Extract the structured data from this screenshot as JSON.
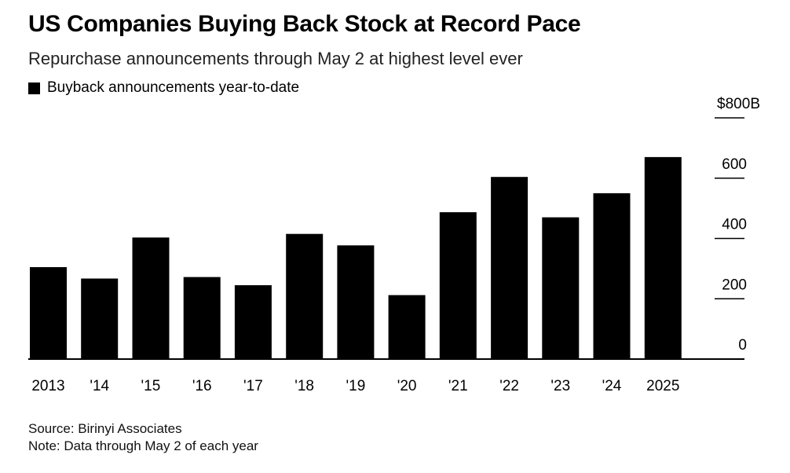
{
  "header": {
    "title": "US Companies Buying Back Stock at Record Pace",
    "subtitle": "Repurchase announcements through May 2 at highest level ever"
  },
  "footer": {
    "source": "Source: Birinyi Associates",
    "note": "Note: Data through May 2 of each year"
  },
  "chart_data": {
    "type": "bar",
    "title": "US Companies Buying Back Stock at Record Pace",
    "subtitle": "Repurchase announcements through May 2 at highest level ever",
    "xlabel": "",
    "ylabel": "",
    "categories": [
      "2013",
      "'14",
      "'15",
      "'16",
      "'17",
      "'18",
      "'19",
      "'20",
      "'21",
      "'22",
      "'23",
      "'24",
      "2025"
    ],
    "series": [
      {
        "name": "Buyback announcements year-to-date",
        "values": [
          305,
          267,
          403,
          272,
          245,
          415,
          377,
          212,
          487,
          604,
          470,
          550,
          670
        ],
        "color": "#000000"
      }
    ],
    "y_ticks": [
      {
        "value": 0,
        "label": "0"
      },
      {
        "value": 200,
        "label": "200"
      },
      {
        "value": 400,
        "label": "400"
      },
      {
        "value": 600,
        "label": "600"
      },
      {
        "value": 800,
        "label": "$800B"
      }
    ],
    "ylim": [
      0,
      800
    ],
    "y_axis_side": "right",
    "grid": false,
    "legend_position": "top-left"
  }
}
